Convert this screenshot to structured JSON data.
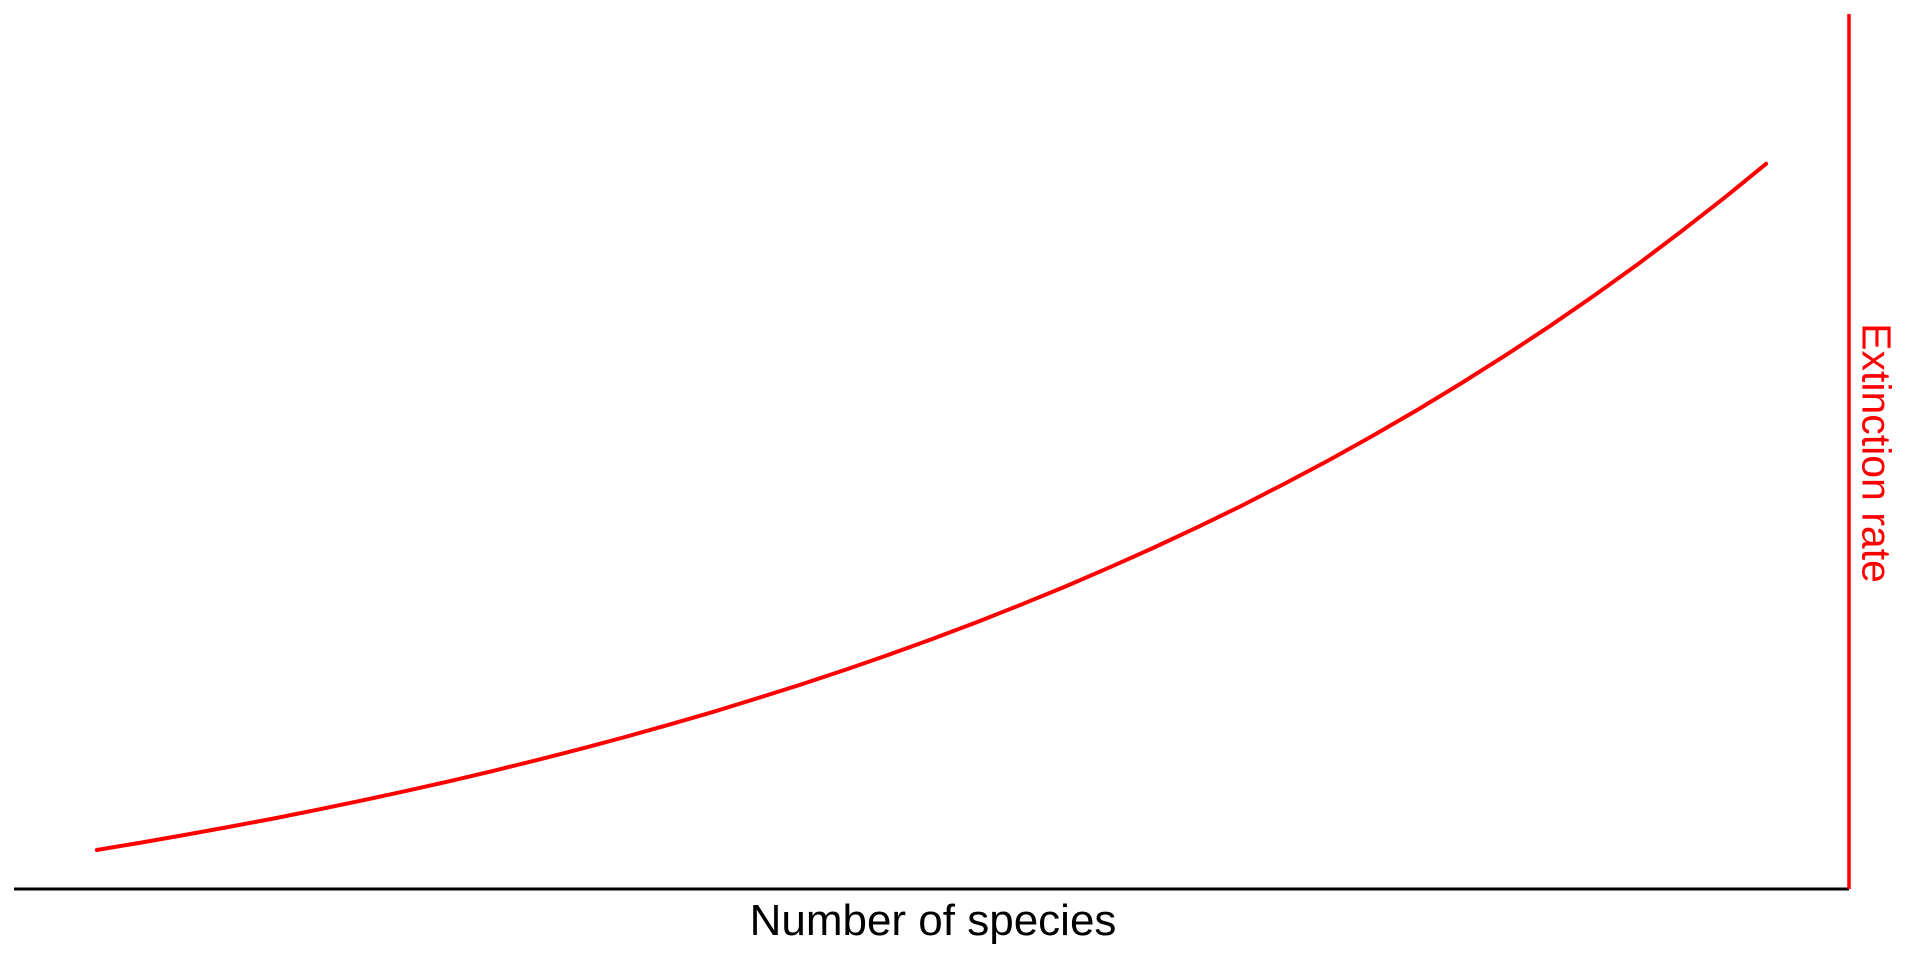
{
  "page": {
    "background": "#ffffff"
  },
  "chart_data": {
    "type": "line",
    "title": "",
    "xlabel": "Number of species",
    "ylabel": "Extinction rate",
    "xlabel_color": "#000000",
    "ylabel_color": "#ff0000",
    "grid": false,
    "legend": "none",
    "tick_labels": "none",
    "x_axis": {
      "side": "bottom",
      "color": "#000000",
      "ticks": "none"
    },
    "y_axis": {
      "side": "right",
      "color": "#ff0000",
      "ticks": "none"
    },
    "xlim": [
      0,
      1
    ],
    "ylim": [
      0,
      1
    ],
    "units_note": "conceptual axes; series values are normalized fractions of the plot area (0-1)",
    "series": [
      {
        "name": "Extinction rate",
        "color": "#ff0000",
        "stroke_width": 4,
        "shape": "concave-up exponential increase",
        "x": [
          0.0452,
          0.0692,
          0.0932,
          0.1172,
          0.1412,
          0.1651,
          0.1891,
          0.2131,
          0.2371,
          0.2611,
          0.285,
          0.309,
          0.333,
          0.357,
          0.3809,
          0.4049,
          0.4289,
          0.4529,
          0.4769,
          0.5008,
          0.5248,
          0.5488,
          0.5728,
          0.5967,
          0.6207,
          0.6447,
          0.6687,
          0.6926,
          0.7166,
          0.7406,
          0.7646,
          0.7885,
          0.8125,
          0.8365,
          0.8605,
          0.8845,
          0.9084,
          0.9324,
          0.9548
        ],
        "y": [
          0.0446,
          0.053,
          0.0618,
          0.071,
          0.0805,
          0.0905,
          0.1009,
          0.1118,
          0.1231,
          0.135,
          0.1473,
          0.1602,
          0.1737,
          0.1878,
          0.2024,
          0.2178,
          0.2337,
          0.2504,
          0.2679,
          0.2861,
          0.305,
          0.3249,
          0.3456,
          0.3672,
          0.3897,
          0.4133,
          0.4377,
          0.4634,
          0.4902,
          0.5182,
          0.5473,
          0.5777,
          0.6095,
          0.6426,
          0.6772,
          0.7134,
          0.7512,
          0.7905,
          0.8288
        ]
      }
    ]
  }
}
